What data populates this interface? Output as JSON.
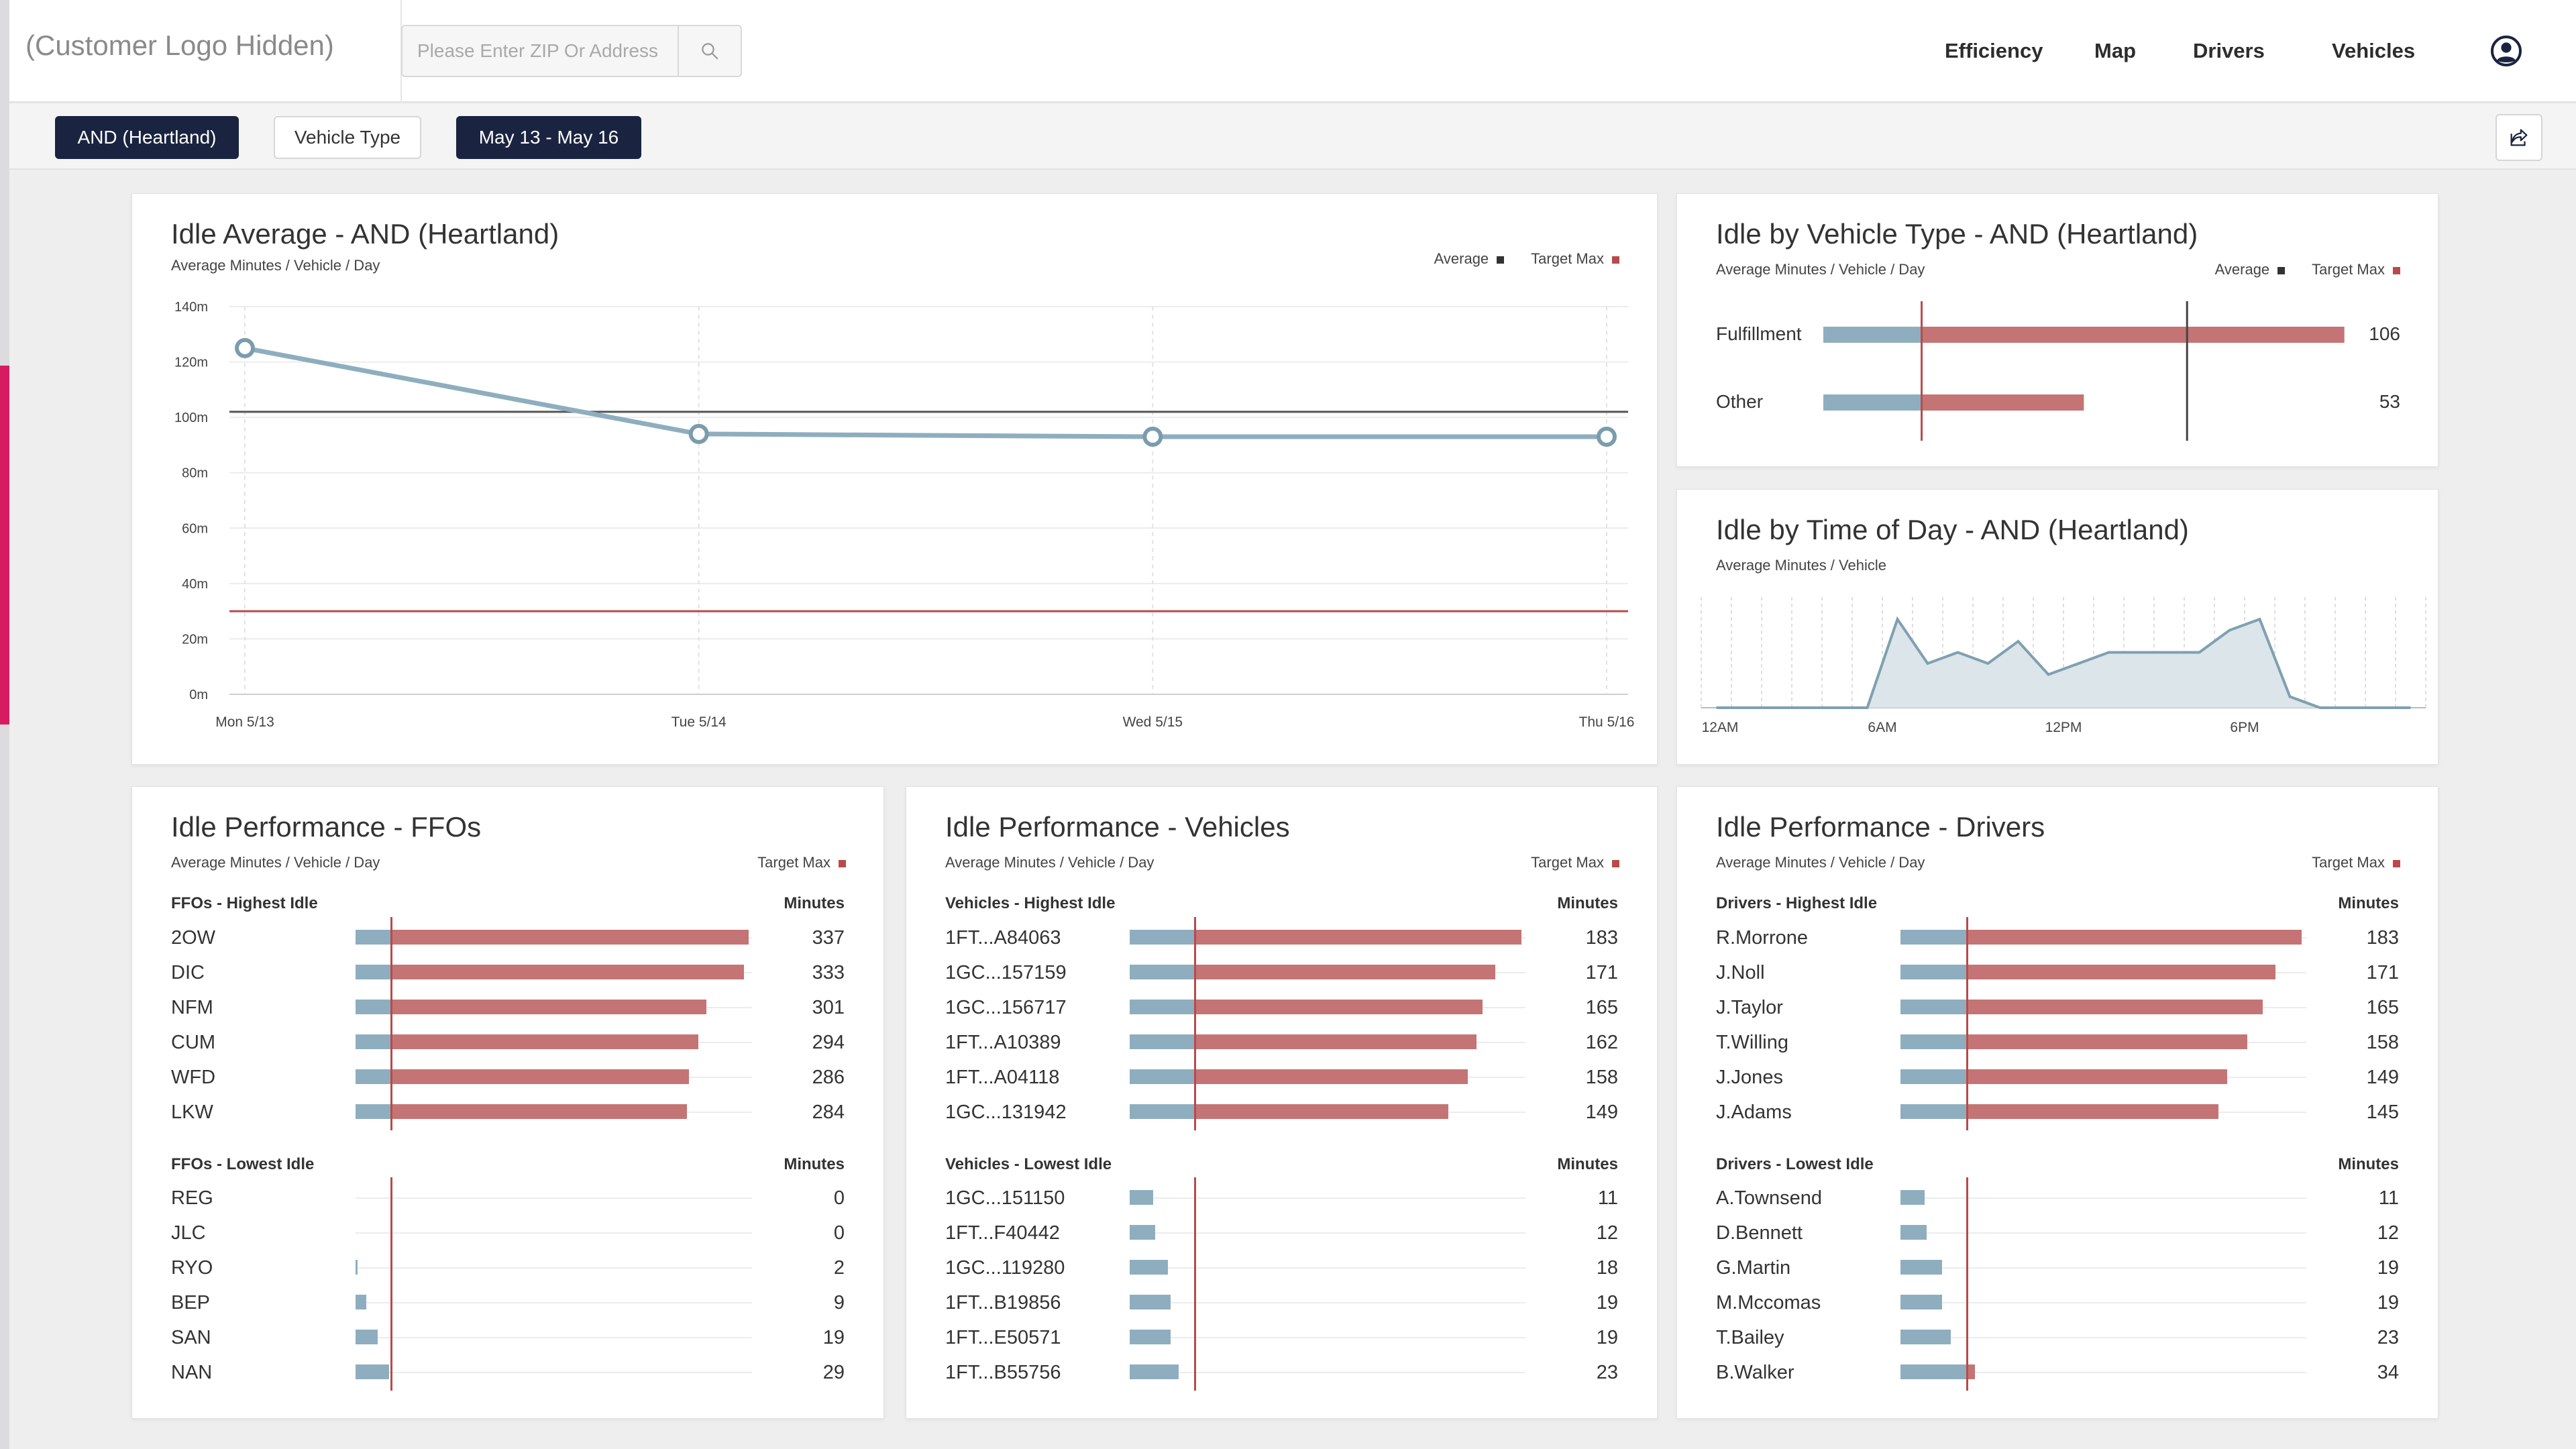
{
  "header": {
    "logo": "(Customer Logo Hidden)",
    "search_placeholder": "Please Enter ZIP Or Address",
    "nav": [
      "Efficiency",
      "Map",
      "Drivers",
      "Vehicles"
    ]
  },
  "filters": {
    "region": "AND (Heartland)",
    "vehicle_type": "Vehicle Type",
    "date_range": "May 13 - May 16"
  },
  "colors": {
    "navy": "#1a2440",
    "blue": "#8eaebf",
    "red": "#c47474",
    "target": "#b84a4a",
    "accent": "#d81b60"
  },
  "legend": {
    "average": "Average",
    "target_max": "Target Max"
  },
  "idle_average": {
    "title": "Idle Average - AND (Heartland)",
    "subtitle": "Average Minutes / Vehicle / Day",
    "chart_data": {
      "type": "line",
      "categories": [
        "Mon 5/13",
        "Tue 5/14",
        "Wed 5/15",
        "Thu 5/16"
      ],
      "values": [
        125,
        94,
        93,
        93
      ],
      "average": 102,
      "target_max": 30,
      "ylim": [
        0,
        140
      ],
      "yticks": [
        "0m",
        "20m",
        "40m",
        "60m",
        "80m",
        "100m",
        "120m",
        "140m"
      ]
    }
  },
  "vehicle_type": {
    "title": "Idle by Vehicle Type - AND (Heartland)",
    "subtitle": "Average Minutes / Vehicle / Day",
    "chart_data": {
      "type": "bar",
      "categories": [
        "Fulfillment",
        "Other"
      ],
      "values": [
        106,
        53
      ],
      "target_max": 20,
      "average": 74,
      "xlim": [
        0,
        110
      ]
    }
  },
  "time_of_day": {
    "title": "Idle by Time of Day - AND (Heartland)",
    "subtitle": "Average Minutes / Vehicle",
    "chart_data": {
      "type": "area",
      "xlabels": [
        "12AM",
        "6AM",
        "12PM",
        "6PM"
      ],
      "values": [
        0,
        0,
        0,
        0,
        0,
        0,
        8,
        4,
        5,
        4,
        6,
        3,
        4,
        5,
        5,
        5,
        5,
        7,
        8,
        1,
        0,
        0,
        0,
        0
      ],
      "ylim": [
        0,
        10
      ]
    }
  },
  "ffos": {
    "title": "Idle Performance - FFOs",
    "subtitle": "Average Minutes / Vehicle / Day",
    "highest_label": "FFOs - Highest Idle",
    "lowest_label": "FFOs - Lowest Idle",
    "minutes_label": "Minutes",
    "chart_data": {
      "type": "bar",
      "target_max": 30,
      "max": 340,
      "highest": [
        {
          "name": "2OW",
          "value": 337
        },
        {
          "name": "DIC",
          "value": 333
        },
        {
          "name": "NFM",
          "value": 301
        },
        {
          "name": "CUM",
          "value": 294
        },
        {
          "name": "WFD",
          "value": 286
        },
        {
          "name": "LKW",
          "value": 284
        }
      ],
      "lowest": [
        {
          "name": "REG",
          "value": 0
        },
        {
          "name": "JLC",
          "value": 0
        },
        {
          "name": "RYO",
          "value": 2
        },
        {
          "name": "BEP",
          "value": 9
        },
        {
          "name": "SAN",
          "value": 19
        },
        {
          "name": "NAN",
          "value": 29
        }
      ]
    }
  },
  "vehicles": {
    "title": "Idle Performance - Vehicles",
    "subtitle": "Average Minutes / Vehicle / Day",
    "highest_label": "Vehicles - Highest Idle",
    "lowest_label": "Vehicles - Lowest Idle",
    "minutes_label": "Minutes",
    "chart_data": {
      "type": "bar",
      "target_max": 30,
      "max": 185,
      "highest": [
        {
          "name": "1FT...A84063",
          "value": 183
        },
        {
          "name": "1GC...157159",
          "value": 171
        },
        {
          "name": "1GC...156717",
          "value": 165
        },
        {
          "name": "1FT...A10389",
          "value": 162
        },
        {
          "name": "1FT...A04118",
          "value": 158
        },
        {
          "name": "1GC...131942",
          "value": 149
        }
      ],
      "lowest": [
        {
          "name": "1GC...151150",
          "value": 11
        },
        {
          "name": "1FT...F40442",
          "value": 12
        },
        {
          "name": "1GC...119280",
          "value": 18
        },
        {
          "name": "1FT...B19856",
          "value": 19
        },
        {
          "name": "1FT...E50571",
          "value": 19
        },
        {
          "name": "1FT...B55756",
          "value": 23
        }
      ]
    }
  },
  "drivers": {
    "title": "Idle Performance - Drivers",
    "subtitle": "Average Minutes / Vehicle / Day",
    "highest_label": "Drivers - Highest Idle",
    "lowest_label": "Drivers - Lowest Idle",
    "minutes_label": "Minutes",
    "chart_data": {
      "type": "bar",
      "target_max": 30,
      "max": 185,
      "highest": [
        {
          "name": "R.Morrone",
          "value": 183
        },
        {
          "name": "J.Noll",
          "value": 171
        },
        {
          "name": "J.Taylor",
          "value": 165
        },
        {
          "name": "T.Willing",
          "value": 158
        },
        {
          "name": "J.Jones",
          "value": 149
        },
        {
          "name": "J.Adams",
          "value": 145
        }
      ],
      "lowest": [
        {
          "name": "A.Townsend",
          "value": 11
        },
        {
          "name": "D.Bennett",
          "value": 12
        },
        {
          "name": "G.Martin",
          "value": 19
        },
        {
          "name": "M.Mccomas",
          "value": 19
        },
        {
          "name": "T.Bailey",
          "value": 23
        },
        {
          "name": "B.Walker",
          "value": 34
        }
      ]
    }
  }
}
